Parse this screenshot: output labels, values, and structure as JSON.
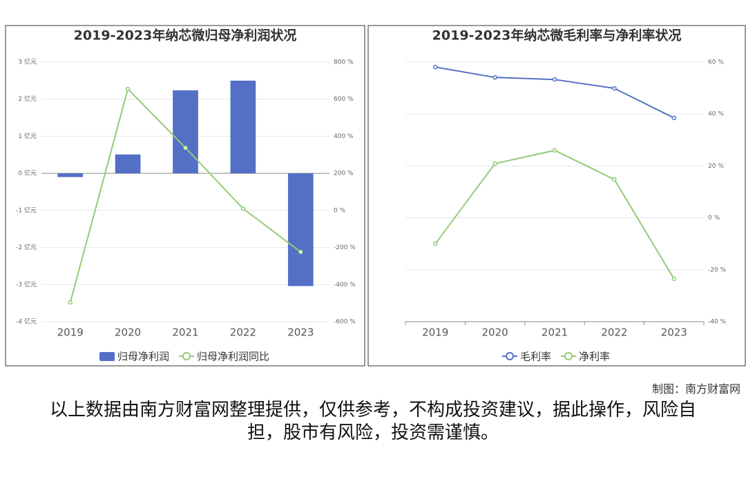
{
  "chart_data": [
    {
      "type": "bar",
      "title": "2019-2023年纳芯微归母净利润状况",
      "categories": [
        "2019",
        "2020",
        "2021",
        "2022",
        "2023"
      ],
      "series": [
        {
          "name": "归母净利润",
          "type": "bar",
          "color": "#5470c6",
          "values": [
            -0.1,
            0.51,
            2.24,
            2.5,
            -3.04
          ]
        },
        {
          "name": "归母净利润同比",
          "type": "line",
          "axis": "y2",
          "color": "#91cc75",
          "values": [
            -496,
            655,
            338,
            10,
            -224
          ]
        }
      ],
      "ylim": [
        -4,
        3
      ],
      "yticks": [
        {
          "value": -4,
          "label": "-4 亿元"
        },
        {
          "value": -3,
          "label": "-3 亿元"
        },
        {
          "value": -2,
          "label": "-2 亿元"
        },
        {
          "value": -1,
          "label": "-1 亿元"
        },
        {
          "value": 0,
          "label": "0 亿元"
        },
        {
          "value": 1,
          "label": "1 亿元"
        },
        {
          "value": 2,
          "label": "2 亿元"
        },
        {
          "value": 3,
          "label": "3 亿元"
        }
      ],
      "y2lim": [
        -600,
        800
      ],
      "y2ticks": [
        {
          "value": -600,
          "label": "-600 %"
        },
        {
          "value": -400,
          "label": "-400 %"
        },
        {
          "value": -200,
          "label": "-200 %"
        },
        {
          "value": 0,
          "label": "0 %"
        },
        {
          "value": 200,
          "label": "200 %"
        },
        {
          "value": 400,
          "label": "400 %"
        },
        {
          "value": 600,
          "label": "600 %"
        },
        {
          "value": 800,
          "label": "800 %"
        }
      ],
      "grid": true
    },
    {
      "type": "line",
      "title": "2019-2023年纳芯微毛利率与净利率状况",
      "categories": [
        "2019",
        "2020",
        "2021",
        "2022",
        "2023"
      ],
      "series": [
        {
          "name": "毛利率",
          "type": "line",
          "axis": "y2",
          "color": "#5470c6",
          "values": [
            58.1,
            54.1,
            53.3,
            49.9,
            38.5
          ]
        },
        {
          "name": "净利率",
          "type": "line",
          "axis": "y2",
          "color": "#91cc75",
          "values": [
            -10.0,
            20.9,
            26.0,
            14.8,
            -23.5
          ]
        }
      ],
      "y2lim": [
        -40,
        60
      ],
      "y2ticks": [
        {
          "value": -40,
          "label": "-40 %"
        },
        {
          "value": -20,
          "label": "-20 %"
        },
        {
          "value": 0,
          "label": "0 %"
        },
        {
          "value": 20,
          "label": "20 %"
        },
        {
          "value": 40,
          "label": "40 %"
        },
        {
          "value": 60,
          "label": "60 %"
        }
      ],
      "grid": true
    }
  ],
  "credit": "制图：南方财富网",
  "disclaimer": "以上数据由南方财富网整理提供，仅供参考，不构成投资建议，据此操作，风险自担，股市有风险，投资需谨慎。"
}
